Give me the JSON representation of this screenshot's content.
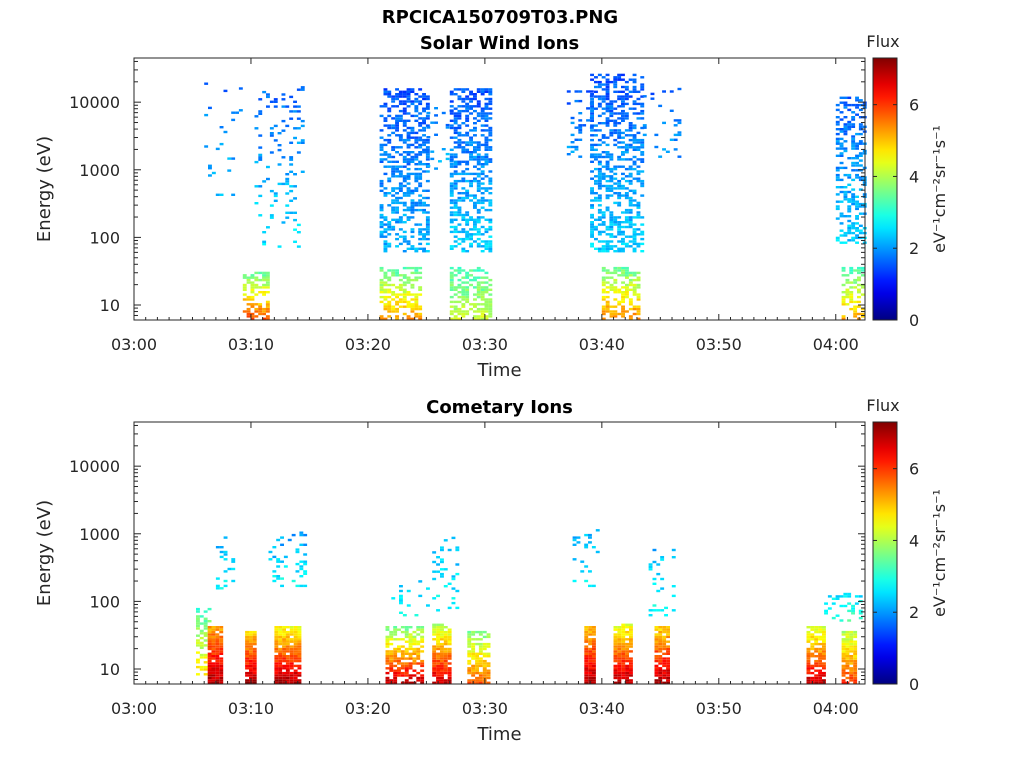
{
  "figure_title": "RPCICA150709T03.PNG",
  "chart_data": [
    {
      "type": "heatmap",
      "title": "Solar Wind Ions",
      "xlabel": "Time",
      "ylabel": "Energy (eV)",
      "colorbar_label": "Flux",
      "colorbar_units": "eV⁻¹cm⁻²sr⁻¹s⁻¹",
      "x_ticks": [
        "03:00",
        "03:10",
        "03:20",
        "03:30",
        "03:40",
        "03:50",
        "04:00"
      ],
      "y_ticks": [
        "10",
        "100",
        "1000",
        "10000"
      ],
      "y_scale": "log",
      "ylim": [
        6,
        45000
      ],
      "xlim_minutes": [
        0,
        62.5
      ],
      "clim": [
        0,
        7.3
      ],
      "colorbar_ticks": [
        "0",
        "2",
        "4",
        "6"
      ],
      "colormap": "jet",
      "clusters": [
        {
          "start_min": 6.0,
          "end_min": 9.2,
          "low_e": 250,
          "high_e": 20000,
          "density": 0.05,
          "flux_high": 2.4,
          "flux_low": 1.6
        },
        {
          "start_min": 9.3,
          "end_min": 11.3,
          "low_e": 6,
          "high_e": 30,
          "density": 0.55,
          "flux_high": 5.8,
          "flux_low": 3.4
        },
        {
          "start_min": 10.3,
          "end_min": 14.3,
          "low_e": 70,
          "high_e": 17000,
          "density": 0.12,
          "flux_high": 2.6,
          "flux_low": 1.6
        },
        {
          "start_min": 21.0,
          "end_min": 24.5,
          "low_e": 6,
          "high_e": 35,
          "density": 0.55,
          "flux_high": 5.3,
          "flux_low": 3.3
        },
        {
          "start_min": 21.0,
          "end_min": 25.0,
          "low_e": 60,
          "high_e": 15000,
          "density": 0.45,
          "flux_high": 2.2,
          "flux_low": 1.5
        },
        {
          "start_min": 25.0,
          "end_min": 27.0,
          "low_e": 1000,
          "high_e": 10000,
          "density": 0.12,
          "flux_high": 2.2,
          "flux_low": 1.6
        },
        {
          "start_min": 27.0,
          "end_min": 30.5,
          "low_e": 6,
          "high_e": 35,
          "density": 0.6,
          "flux_high": 4.2,
          "flux_low": 3.2
        },
        {
          "start_min": 27.0,
          "end_min": 30.5,
          "low_e": 60,
          "high_e": 15000,
          "density": 0.5,
          "flux_high": 2.4,
          "flux_low": 1.5
        },
        {
          "start_min": 37.0,
          "end_min": 39.0,
          "low_e": 1500,
          "high_e": 15000,
          "density": 0.12,
          "flux_high": 2.0,
          "flux_low": 1.5
        },
        {
          "start_min": 40.0,
          "end_min": 43.0,
          "low_e": 6,
          "high_e": 35,
          "density": 0.6,
          "flux_high": 5.5,
          "flux_low": 3.4
        },
        {
          "start_min": 39.0,
          "end_min": 43.5,
          "low_e": 60,
          "high_e": 25000,
          "density": 0.45,
          "flux_high": 2.4,
          "flux_low": 1.5
        },
        {
          "start_min": 43.5,
          "end_min": 46.5,
          "low_e": 1500,
          "high_e": 15000,
          "density": 0.08,
          "flux_high": 2.0,
          "flux_low": 1.6
        },
        {
          "start_min": 60.5,
          "end_min": 62.3,
          "low_e": 6,
          "high_e": 35,
          "density": 0.5,
          "flux_high": 5.2,
          "flux_low": 3.2
        },
        {
          "start_min": 60.0,
          "end_min": 62.5,
          "low_e": 80,
          "high_e": 12000,
          "density": 0.4,
          "flux_high": 2.4,
          "flux_low": 1.6
        }
      ]
    },
    {
      "type": "heatmap",
      "title": "Cometary Ions",
      "xlabel": "Time",
      "ylabel": "Energy (eV)",
      "colorbar_label": "Flux",
      "colorbar_units": "eV⁻¹cm⁻²sr⁻¹s⁻¹",
      "x_ticks": [
        "03:00",
        "03:10",
        "03:20",
        "03:30",
        "03:40",
        "03:50",
        "04:00"
      ],
      "y_ticks": [
        "10",
        "100",
        "1000",
        "10000"
      ],
      "y_scale": "log",
      "ylim": [
        6,
        45000
      ],
      "xlim_minutes": [
        0,
        62.5
      ],
      "clim": [
        0,
        7.3
      ],
      "colorbar_ticks": [
        "0",
        "2",
        "4",
        "6"
      ],
      "colormap": "jet",
      "clusters": [
        {
          "start_min": 5.3,
          "end_min": 6.5,
          "low_e": 8,
          "high_e": 80,
          "density": 0.5,
          "flux_high": 4.8,
          "flux_low": 3.2
        },
        {
          "start_min": 6.3,
          "end_min": 7.5,
          "low_e": 6,
          "high_e": 40,
          "density": 0.95,
          "flux_high": 7.0,
          "flux_low": 5.2
        },
        {
          "start_min": 7.0,
          "end_min": 8.5,
          "low_e": 150,
          "high_e": 900,
          "density": 0.12,
          "flux_high": 2.8,
          "flux_low": 2.2
        },
        {
          "start_min": 9.5,
          "end_min": 10.3,
          "low_e": 6,
          "high_e": 35,
          "density": 0.95,
          "flux_high": 7.0,
          "flux_low": 4.8
        },
        {
          "start_min": 11.5,
          "end_min": 14.5,
          "low_e": 150,
          "high_e": 1000,
          "density": 0.15,
          "flux_high": 2.8,
          "flux_low": 2.0
        },
        {
          "start_min": 12.0,
          "end_min": 14.0,
          "low_e": 6,
          "high_e": 40,
          "density": 0.9,
          "flux_high": 7.0,
          "flux_low": 4.5
        },
        {
          "start_min": 21.5,
          "end_min": 24.5,
          "low_e": 6,
          "high_e": 40,
          "density": 0.6,
          "flux_high": 6.8,
          "flux_low": 3.6
        },
        {
          "start_min": 22.0,
          "end_min": 25.0,
          "low_e": 60,
          "high_e": 200,
          "density": 0.12,
          "flux_high": 2.8,
          "flux_low": 2.2
        },
        {
          "start_min": 25.5,
          "end_min": 27.0,
          "low_e": 6,
          "high_e": 45,
          "density": 0.85,
          "flux_high": 6.8,
          "flux_low": 4.0
        },
        {
          "start_min": 25.5,
          "end_min": 27.5,
          "low_e": 60,
          "high_e": 900,
          "density": 0.15,
          "flux_high": 2.8,
          "flux_low": 2.2
        },
        {
          "start_min": 28.5,
          "end_min": 30.3,
          "low_e": 6,
          "high_e": 35,
          "density": 0.7,
          "flux_high": 5.8,
          "flux_low": 3.6
        },
        {
          "start_min": 37.5,
          "end_min": 39.5,
          "low_e": 150,
          "high_e": 1100,
          "density": 0.15,
          "flux_high": 2.8,
          "flux_low": 2.2
        },
        {
          "start_min": 38.5,
          "end_min": 39.3,
          "low_e": 6,
          "high_e": 40,
          "density": 0.95,
          "flux_high": 7.0,
          "flux_low": 5.0
        },
        {
          "start_min": 41.0,
          "end_min": 42.5,
          "low_e": 6,
          "high_e": 45,
          "density": 0.9,
          "flux_high": 7.0,
          "flux_low": 4.3
        },
        {
          "start_min": 44.0,
          "end_min": 46.0,
          "low_e": 60,
          "high_e": 700,
          "density": 0.15,
          "flux_high": 2.8,
          "flux_low": 2.2
        },
        {
          "start_min": 44.5,
          "end_min": 45.5,
          "low_e": 6,
          "high_e": 40,
          "density": 0.9,
          "flux_high": 7.0,
          "flux_low": 4.8
        },
        {
          "start_min": 57.5,
          "end_min": 59.0,
          "low_e": 6,
          "high_e": 40,
          "density": 0.8,
          "flux_high": 6.8,
          "flux_low": 4.2
        },
        {
          "start_min": 59.0,
          "end_min": 62.0,
          "low_e": 50,
          "high_e": 130,
          "density": 0.25,
          "flux_high": 3.2,
          "flux_low": 2.4
        },
        {
          "start_min": 60.5,
          "end_min": 61.5,
          "low_e": 6,
          "high_e": 35,
          "density": 0.85,
          "flux_high": 6.0,
          "flux_low": 4.0
        }
      ]
    }
  ]
}
